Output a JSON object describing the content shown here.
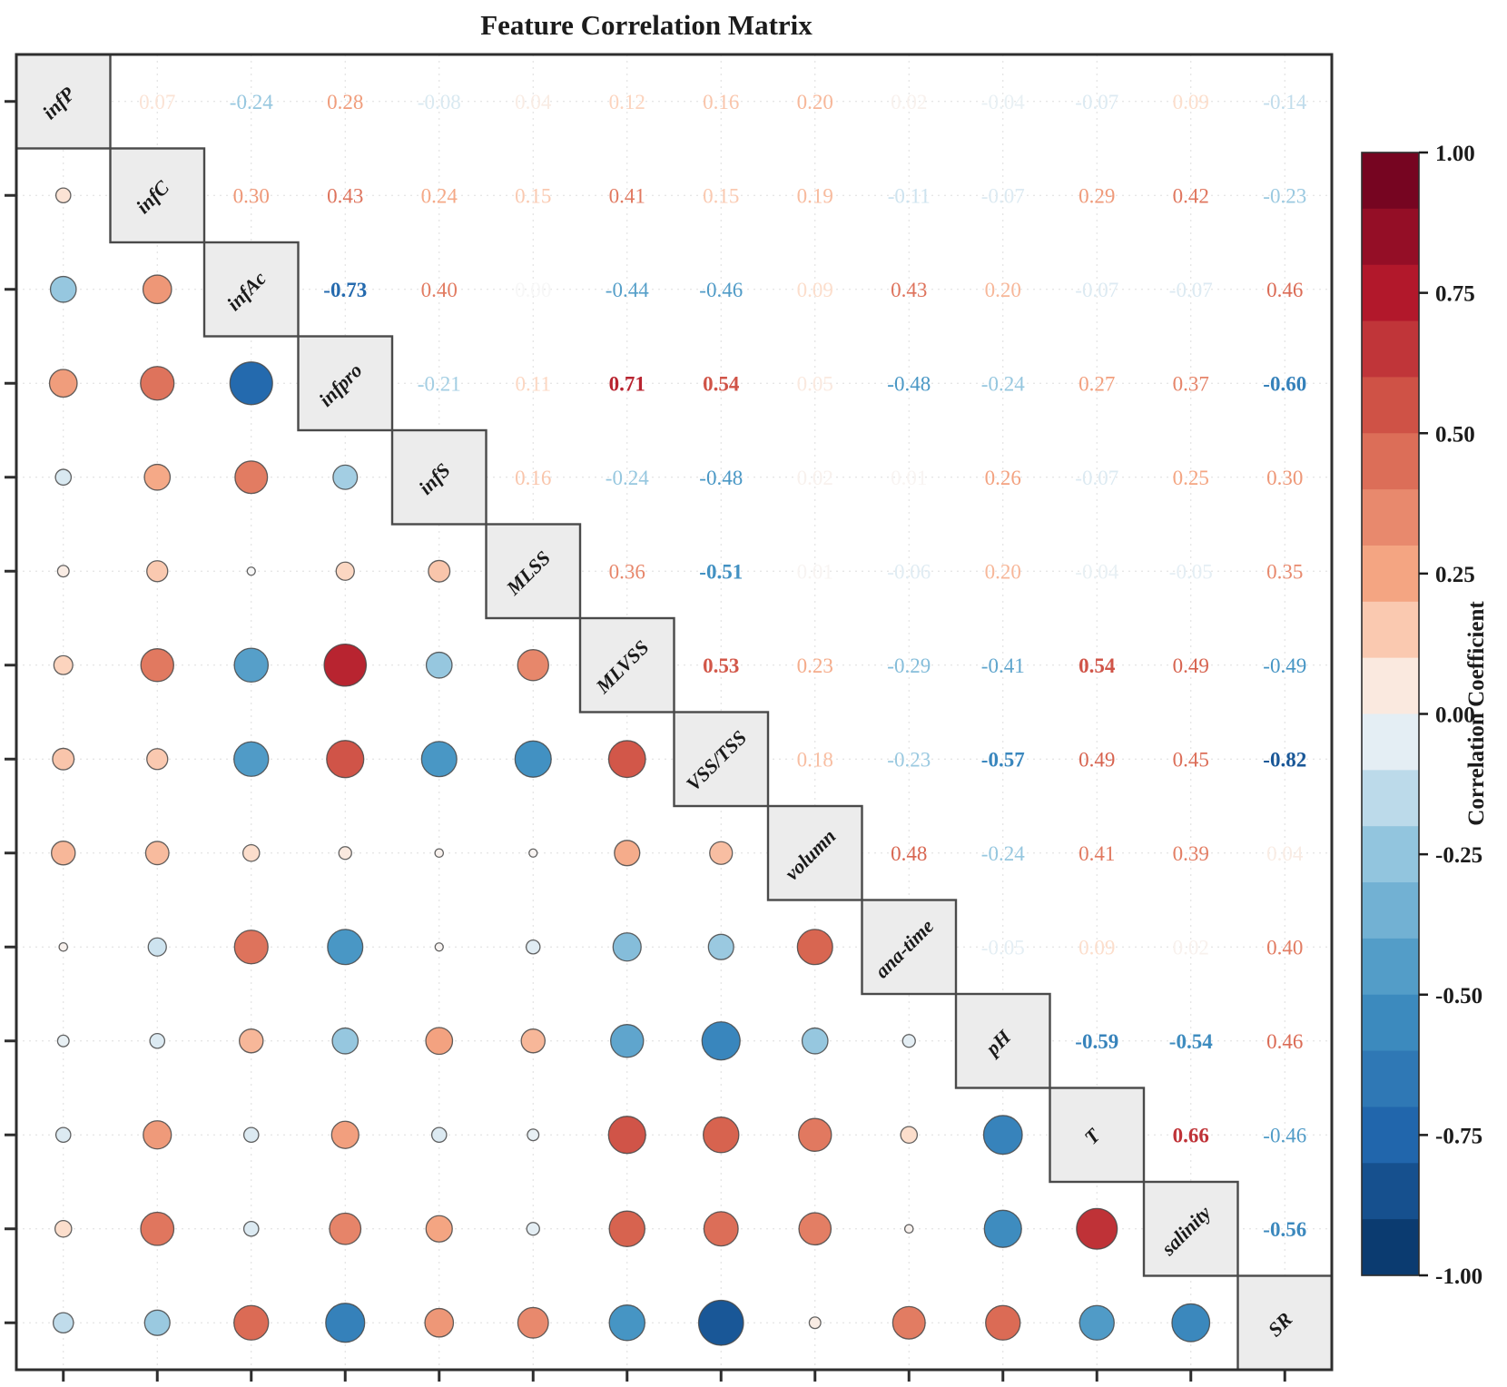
{
  "title": "Feature Correlation Matrix",
  "chart_data": {
    "type": "heatmap",
    "subtype": "correlation-matrix-with-bubbles",
    "title": "Feature Correlation Matrix",
    "features": [
      "infP",
      "infC",
      "infAc",
      "infpro",
      "infS",
      "MLSS",
      "MLVSS",
      "VSS/TSS",
      "volumn",
      "ana-time",
      "pH",
      "T",
      "salinity",
      "SR"
    ],
    "upper_triangle": [
      {
        "feature": "infP",
        "values": [
          0.07,
          -0.24,
          0.28,
          -0.08,
          0.04,
          0.12,
          0.16,
          0.2,
          0.02,
          -0.04,
          -0.07,
          0.09,
          -0.14
        ]
      },
      {
        "feature": "infC",
        "values": [
          0.3,
          0.43,
          0.24,
          0.15,
          0.41,
          0.15,
          0.19,
          -0.11,
          -0.07,
          0.29,
          0.42,
          -0.23
        ]
      },
      {
        "feature": "infAc",
        "values": [
          -0.73,
          0.4,
          0.0,
          -0.44,
          -0.46,
          0.09,
          0.43,
          0.2,
          -0.07,
          -0.07,
          0.46
        ]
      },
      {
        "feature": "infpro",
        "values": [
          -0.21,
          0.11,
          0.71,
          0.54,
          0.05,
          -0.48,
          -0.24,
          0.27,
          0.37,
          -0.6
        ]
      },
      {
        "feature": "infS",
        "values": [
          0.16,
          -0.24,
          -0.48,
          0.02,
          0.01,
          0.26,
          -0.07,
          0.25,
          0.3
        ]
      },
      {
        "feature": "MLSS",
        "values": [
          0.36,
          -0.51,
          0.01,
          -0.06,
          0.2,
          -0.04,
          -0.05,
          0.35
        ]
      },
      {
        "feature": "MLVSS",
        "values": [
          0.53,
          0.23,
          -0.29,
          -0.41,
          0.54,
          0.49,
          -0.49
        ]
      },
      {
        "feature": "VSS/TSS",
        "values": [
          0.18,
          -0.23,
          -0.57,
          0.49,
          0.45,
          -0.82
        ]
      },
      {
        "feature": "volumn",
        "values": [
          0.48,
          -0.24,
          0.41,
          0.39,
          0.04
        ]
      },
      {
        "feature": "ana-time",
        "values": [
          -0.05,
          0.09,
          0.02,
          0.4
        ]
      },
      {
        "feature": "pH",
        "values": [
          -0.59,
          -0.54,
          0.46
        ]
      },
      {
        "feature": "T",
        "values": [
          0.66,
          -0.46
        ]
      },
      {
        "feature": "salinity",
        "values": [
          -0.56
        ]
      }
    ],
    "value_format": "two-decimals",
    "bold_abs_threshold": 0.5,
    "lower_triangle_encoding": "circle size and color encode correlation",
    "upper_triangle_encoding": "numeric value colored by correlation",
    "colorbar": {
      "label": "Correlation Coefficient",
      "tick_labels": [
        "1.00",
        "0.75",
        "0.50",
        "0.25",
        "0.00",
        "-0.25",
        "-0.50",
        "-0.75",
        "-1.00"
      ],
      "tick_values": [
        1.0,
        0.75,
        0.5,
        0.25,
        0.0,
        -0.25,
        -0.5,
        -0.75,
        -1.0
      ],
      "range": [
        -1.0,
        1.0
      ],
      "segments": 20,
      "position": "right"
    },
    "colors": {
      "colormap_anchors": [
        [
          -1.0,
          "#053061"
        ],
        [
          -0.75,
          "#2166ac"
        ],
        [
          -0.5,
          "#4393c3"
        ],
        [
          -0.25,
          "#92c5de"
        ],
        [
          -0.1,
          "#d1e5f0"
        ],
        [
          0.0,
          "#f7f7f7"
        ],
        [
          0.1,
          "#fddbc7"
        ],
        [
          0.25,
          "#f4a582"
        ],
        [
          0.5,
          "#d6604d"
        ],
        [
          0.75,
          "#b2182b"
        ],
        [
          1.0,
          "#67001f"
        ]
      ],
      "diagonal_fill": "#ececec",
      "diagonal_border": "#4a4a4a",
      "frame": "#2e2e2e",
      "grid": "#dddddd",
      "title_color": "#1c1c1c"
    },
    "grid": "dotted",
    "legend_position": "right-colorbar",
    "axes": {
      "tick_marks": "left and bottom, one per feature, unlabeled"
    }
  }
}
